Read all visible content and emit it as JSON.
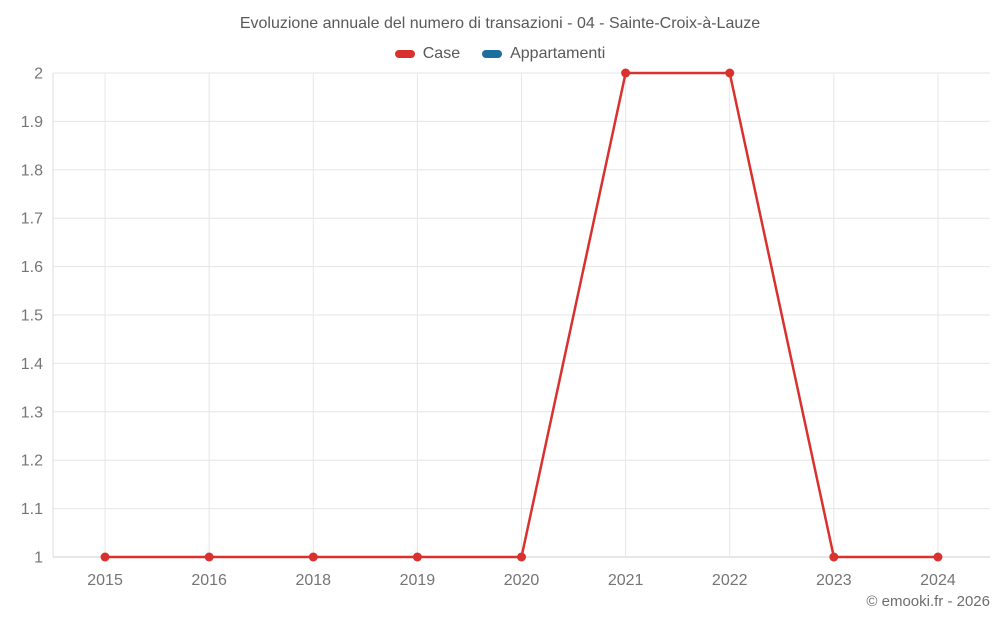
{
  "chart_data": {
    "type": "line",
    "title": "Evoluzione annuale del numero di transazioni - 04 - Sainte-Croix-à-Lauze",
    "categories": [
      "2015",
      "2016",
      "2018",
      "2019",
      "2020",
      "2021",
      "2022",
      "2023",
      "2024"
    ],
    "series": [
      {
        "name": "Case",
        "color": "#d9312e",
        "values": [
          1,
          1,
          1,
          1,
          1,
          2,
          2,
          1,
          1
        ]
      },
      {
        "name": "Appartamenti",
        "color": "#1b6e9e",
        "values": []
      }
    ],
    "xlabel": "",
    "ylabel": "",
    "ylim": [
      1,
      2
    ],
    "yticks": [
      1,
      1.1,
      1.2,
      1.3,
      1.4,
      1.5,
      1.6,
      1.7,
      1.8,
      1.9,
      2
    ],
    "grid": true,
    "legend_position": "top"
  },
  "footer": {
    "text": "© emooki.fr - 2026"
  },
  "colors": {
    "grid_line": "#e6e6e6",
    "axis_line": "#dcdcdc",
    "baseline": "#cfcfcf",
    "tick_text": "#757575"
  }
}
